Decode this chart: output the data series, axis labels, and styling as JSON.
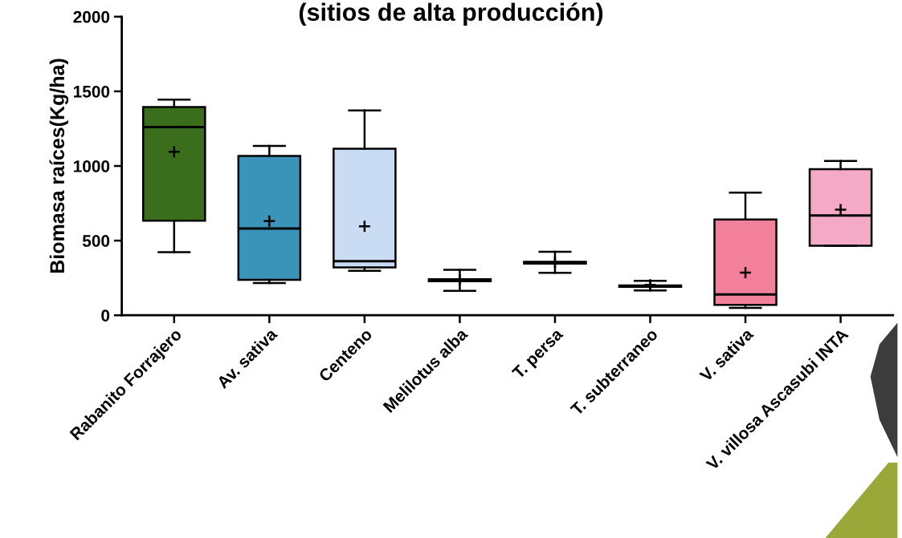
{
  "chart_data": {
    "type": "box",
    "title": "(sitios de alta producción)",
    "ylabel": "Biomasa raíces(Kg/ha)",
    "categories": [
      "Rabanito Forrajero",
      "Av. sativa",
      "Centeno",
      "Melilotus alba",
      "T. persa",
      "T. subterraneo",
      "V. sativa",
      "V. villosa Ascasubi INTA"
    ],
    "colors": [
      "#3a6e1c",
      "#3a93b8",
      "#c9dcf3",
      "#ffffff",
      "#ffffff",
      "#ffffff",
      "#f2809b",
      "#f4aac6"
    ],
    "boxes": [
      {
        "low": 423,
        "q1": 634,
        "median": 1260,
        "q3": 1395,
        "high": 1445,
        "mean": 1095
      },
      {
        "low": 216,
        "q1": 237,
        "median": 581,
        "q3": 1067,
        "high": 1134,
        "mean": 631
      },
      {
        "low": 298,
        "q1": 321,
        "median": 362,
        "q3": 1115,
        "high": 1372,
        "mean": 596
      },
      {
        "low": 164,
        "q1": 228,
        "median": 235,
        "q3": 242,
        "high": 305,
        "mean": 238
      },
      {
        "low": 284,
        "q1": 346,
        "median": 351,
        "q3": 358,
        "high": 425,
        "mean": 354
      },
      {
        "low": 166,
        "q1": 190,
        "median": 194,
        "q3": 200,
        "high": 231,
        "mean": 204
      },
      {
        "low": 49,
        "q1": 69,
        "median": 139,
        "q3": 642,
        "high": 821,
        "mean": 286
      },
      {
        "low": 465,
        "q1": 465,
        "median": 668,
        "q3": 978,
        "high": 1034,
        "mean": 707
      }
    ],
    "ylim": [
      0,
      2000
    ],
    "yticks": [
      0,
      500,
      1000,
      1500,
      2000
    ],
    "grid": false
  }
}
